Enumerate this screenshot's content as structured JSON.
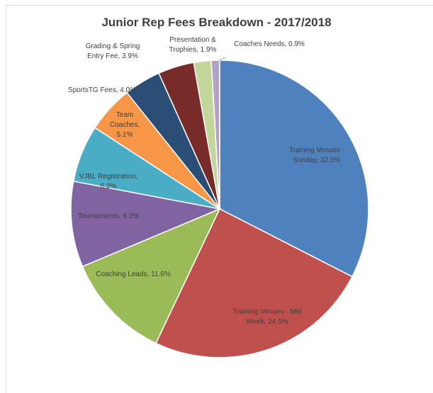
{
  "chart_data": {
    "type": "pie",
    "title": "Junior Rep Fees Breakdown - 2017/2018",
    "slices": [
      {
        "label": "Training Venues -",
        "label2": "Sunday, 32.5%",
        "value": 32.5,
        "color": "#4f81bd"
      },
      {
        "label": "Training Venues - Mid",
        "label2": "Week, 24.5%",
        "value": 24.5,
        "color": "#c0504d"
      },
      {
        "label": "Coaching Leads, 11.6%",
        "label2": "",
        "value": 11.6,
        "color": "#9bbb59"
      },
      {
        "label": "Tournaments, 9.3%",
        "label2": "",
        "value": 9.3,
        "color": "#8064a2"
      },
      {
        "label": "VJBL Registration,",
        "label2": "6.2%",
        "value": 6.2,
        "color": "#4bacc6"
      },
      {
        "label": "Team",
        "label2": "Coaches,",
        "label3": "5.1%",
        "value": 5.1,
        "color": "#f79646"
      },
      {
        "label": "SportsTG Fees, 4.0%",
        "label2": "",
        "value": 4.0,
        "color": "#2c4d75"
      },
      {
        "label": "Grading & Spring",
        "label2": "Entry Fee, 3.9%",
        "value": 3.9,
        "color": "#772c2a"
      },
      {
        "label": "Presentation &",
        "label2": "Trophies, 1.9%",
        "value": 1.9,
        "color": "#c3d69b"
      },
      {
        "label": "Coaches Needs, 0.9%",
        "label2": "",
        "value": 0.9,
        "color": "#b3a2c7"
      }
    ],
    "legend": "none",
    "labels": "data labels (category name and percentage)"
  }
}
